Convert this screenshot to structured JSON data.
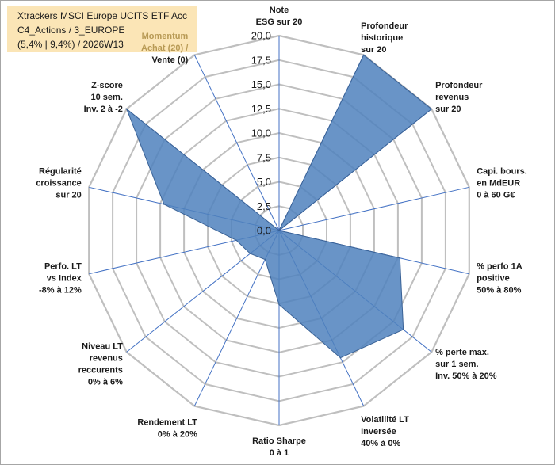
{
  "title": {
    "line1": "Xtrackers MSCI Europe UCITS ETF Acc",
    "line2": "C4_Actions / 3_EUROPE",
    "line3": "(5,4% | 9,4%) / 2026W13"
  },
  "colors": {
    "fill": "#4f81bd",
    "stroke": "#3a6296",
    "grid": "#bfbfbf",
    "spoke": "#4472c4",
    "title_bg": "#fbe5b6"
  },
  "chart_data": {
    "type": "radar",
    "range": [
      0,
      20
    ],
    "ticks": [
      "0,0",
      "2,5",
      "5,0",
      "7,5",
      "10,0",
      "12,5",
      "15,0",
      "17,5",
      "20,0"
    ],
    "axes": [
      {
        "label": [
          "Note",
          "ESG sur 20"
        ],
        "value": 0
      },
      {
        "label": [
          "Profondeur",
          "historique",
          "sur 20"
        ],
        "value": 20
      },
      {
        "label": [
          "Profondeur",
          "revenus",
          "sur 20"
        ],
        "value": 20
      },
      {
        "label": [
          "Capi. bours.",
          "en MdEUR",
          "0 à 60 G€"
        ],
        "value": 0
      },
      {
        "label": [
          "% perfo 1A",
          "positive",
          "50% à 80%"
        ],
        "value": 12.7
      },
      {
        "label": [
          "% perte max.",
          "sur 1 sem.",
          "Inv. 50% à 20%"
        ],
        "value": 16.3
      },
      {
        "label": [
          "Volatilité LT",
          "Inversée",
          "40% à 0%"
        ],
        "value": 14.5
      },
      {
        "label": [
          "Ratio Sharpe",
          "0 à 1"
        ],
        "value": 7.6
      },
      {
        "label": [
          "Rendement LT",
          "0% à 20%"
        ],
        "value": 3.3
      },
      {
        "label": [
          "Niveau LT",
          "revenus",
          "reccurents",
          "0% à 6%"
        ],
        "value": 3.8
      },
      {
        "label": [
          "Perfo. LT",
          "vs Index",
          "-8% à 12%"
        ],
        "value": 4.5
      },
      {
        "label": [
          "Régularité",
          "croissance",
          "sur 20"
        ],
        "value": 12.1
      },
      {
        "label": [
          "Z-score",
          "10 sem.",
          "Inv. 2 à -2"
        ],
        "value": 20
      },
      {
        "label": [
          "Momentum",
          "Achat (20) /",
          "Vente (0)"
        ],
        "value": 0
      }
    ]
  }
}
